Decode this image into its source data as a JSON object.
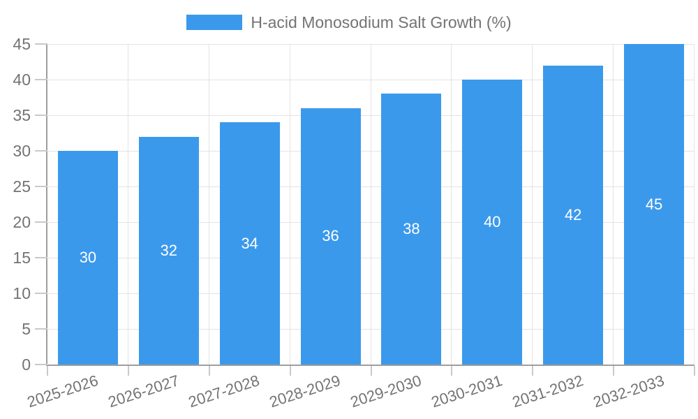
{
  "chart_data": {
    "type": "bar",
    "title": "H-acid Monosodium Salt Growth (%)",
    "categories": [
      "2025-2026",
      "2026-2027",
      "2027-2028",
      "2028-2029",
      "2029-2030",
      "2030-2031",
      "2031-2032",
      "2032-2033"
    ],
    "values": [
      30,
      32,
      34,
      36,
      38,
      40,
      42,
      45
    ],
    "yticks": [
      0,
      5,
      10,
      15,
      20,
      25,
      30,
      35,
      40,
      45
    ],
    "ylim": [
      0,
      45
    ],
    "xlabel": "",
    "ylabel": "",
    "grid": true,
    "legend_position": "top-center",
    "x_label_rotation_deg": -18,
    "value_labels_inside_bars": true,
    "colors": {
      "bar": "#3B99EC",
      "value_label": "#FFFFFF",
      "grid": "#E3E3E3",
      "axis": "#9E9E9E",
      "tick": "#C9C9C9",
      "text": "#737373"
    }
  }
}
